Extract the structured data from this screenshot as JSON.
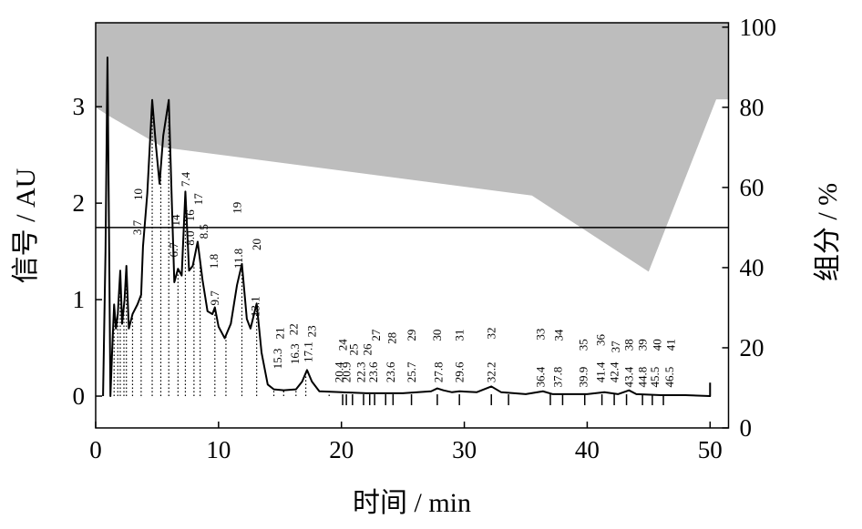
{
  "chart_data": {
    "type": "line",
    "x_label": "时间 / min",
    "y_label": "信号 / AU",
    "y2_label": "组分 / %",
    "xlim": [
      0,
      51.5
    ],
    "xticks": [
      0,
      10,
      20,
      30,
      40,
      50
    ],
    "ylim": [
      -0.33,
      3.87
    ],
    "yticks": [
      0,
      1,
      2,
      3
    ],
    "y2lim": [
      0,
      101.1
    ],
    "y2ticks": [
      0,
      20,
      40,
      60,
      80,
      100
    ],
    "series": [
      {
        "color": "#000000",
        "x": [
          0.6,
          0.8,
          0.96,
          1.1,
          1.2,
          1.35,
          1.5,
          1.65,
          1.8,
          2.0,
          2.15,
          2.35,
          2.5,
          2.7,
          3.0,
          3.4,
          3.7,
          3.85,
          4.2,
          4.6,
          4.9,
          5.2,
          5.5,
          5.95,
          6.2,
          6.4,
          6.7,
          7.0,
          7.3,
          7.6,
          7.9,
          8.3,
          8.7,
          9.1,
          9.5,
          9.7,
          10.0,
          10.5,
          11.0,
          11.5,
          11.9,
          12.3,
          12.6,
          13.1,
          13.5,
          14.0,
          14.5,
          15.3,
          16.3,
          16.8,
          17.2,
          17.6,
          18.2,
          20,
          22,
          25,
          27.3,
          27.8,
          28.3,
          29.0,
          29.6,
          31.0,
          32.2,
          33.0,
          35,
          36.4,
          37.2,
          40,
          41.4,
          42.5,
          43.4,
          44.0,
          46,
          48,
          50,
          50
        ],
        "values": [
          0,
          1.5,
          3.51,
          1.5,
          0,
          0.5,
          0.95,
          0.7,
          0.85,
          1.3,
          0.75,
          1.0,
          1.35,
          0.7,
          0.85,
          0.95,
          1.05,
          1.55,
          2.1,
          3.07,
          2.6,
          2.2,
          2.7,
          3.07,
          2.0,
          1.18,
          1.32,
          1.25,
          2.12,
          1.3,
          1.35,
          1.6,
          1.2,
          0.88,
          0.85,
          0.92,
          0.72,
          0.6,
          0.75,
          1.15,
          1.37,
          0.8,
          0.7,
          0.96,
          0.45,
          0.12,
          0.07,
          0.06,
          0.07,
          0.15,
          0.27,
          0.15,
          0.05,
          0.04,
          0.03,
          0.03,
          0.05,
          0.08,
          0.06,
          0.04,
          0.05,
          0.04,
          0.1,
          0.04,
          0.02,
          0.05,
          0.02,
          0.02,
          0.04,
          0.02,
          0.06,
          0.02,
          0.01,
          0.01,
          0,
          0.14
        ]
      },
      {
        "color": "#bdbdbd",
        "axis": "y2",
        "x": [
          0,
          1,
          5.5,
          35.5,
          45,
          50.5,
          51.5
        ],
        "values": [
          80,
          78,
          70,
          58,
          39,
          82,
          82
        ]
      }
    ],
    "hline": {
      "value": 50,
      "axis": "y2"
    },
    "droplines": [
      1.5,
      1.8,
      2.0,
      2.3,
      2.5,
      3.0,
      3.7,
      4.6,
      5.3,
      5.95,
      6.7,
      7.3,
      8.0,
      8.5,
      9.7,
      10.6,
      11.9,
      13.1,
      14.5,
      15.3,
      16.3,
      17.1,
      19.0
    ],
    "peak_ticks": [
      20.1,
      20.4,
      20.9,
      21.8,
      22.3,
      22.7,
      23.6,
      24.2,
      25.7,
      27.8,
      29.6,
      32.2,
      33.6,
      37.0,
      38.0,
      39.8,
      41.2,
      42.2,
      43.2,
      44.5,
      45.3,
      46.2
    ],
    "peak_labels": [
      {
        "text": "10",
        "x": 3.56,
        "y": 2.03
      },
      {
        "text": "3.7",
        "x": 3.5,
        "y": 1.67
      },
      {
        "text": "6.7",
        "x": 6.45,
        "y": 1.44
      },
      {
        "text": "14",
        "x": 6.6,
        "y": 1.76
      },
      {
        "text": "7.4",
        "x": 7.4,
        "y": 2.17
      },
      {
        "text": "8.0",
        "x": 7.8,
        "y": 1.56
      },
      {
        "text": "16",
        "x": 7.8,
        "y": 1.81
      },
      {
        "text": "17",
        "x": 8.45,
        "y": 1.98
      },
      {
        "text": "8.5",
        "x": 8.9,
        "y": 1.63
      },
      {
        "text": "1.8",
        "x": 9.7,
        "y": 1.32
      },
      {
        "text": "9.7",
        "x": 9.8,
        "y": 0.94
      },
      {
        "text": "19",
        "x": 11.6,
        "y": 1.89
      },
      {
        "text": "11.8",
        "x": 11.7,
        "y": 1.32
      },
      {
        "text": "20",
        "x": 13.2,
        "y": 1.51
      },
      {
        "text": "13.1",
        "x": 13.1,
        "y": 0.82
      },
      {
        "text": "15.3",
        "x": 14.9,
        "y": 0.28
      },
      {
        "text": "21",
        "x": 15.1,
        "y": 0.59
      },
      {
        "text": "16.3",
        "x": 16.3,
        "y": 0.33
      },
      {
        "text": "22",
        "x": 16.2,
        "y": 0.63
      },
      {
        "text": "17.1",
        "x": 17.4,
        "y": 0.35
      },
      {
        "text": "23",
        "x": 17.7,
        "y": 0.61
      },
      {
        "text": "20.4",
        "x": 19.9,
        "y": 0.14
      },
      {
        "text": "24",
        "x": 20.2,
        "y": 0.47
      },
      {
        "text": "20.9",
        "x": 20.5,
        "y": 0.14
      },
      {
        "text": "25",
        "x": 21.1,
        "y": 0.42
      },
      {
        "text": "22.3",
        "x": 21.7,
        "y": 0.14
      },
      {
        "text": "26",
        "x": 22.2,
        "y": 0.42
      },
      {
        "text": "23.6",
        "x": 22.7,
        "y": 0.14
      },
      {
        "text": "27",
        "x": 22.9,
        "y": 0.57
      },
      {
        "text": "23.6",
        "x": 24.1,
        "y": 0.14
      },
      {
        "text": "28",
        "x": 24.2,
        "y": 0.54
      },
      {
        "text": "25.7",
        "x": 25.8,
        "y": 0.14
      },
      {
        "text": "29",
        "x": 25.8,
        "y": 0.57
      },
      {
        "text": "27.8",
        "x": 28.0,
        "y": 0.14
      },
      {
        "text": "30",
        "x": 27.9,
        "y": 0.57
      },
      {
        "text": "29.6",
        "x": 29.7,
        "y": 0.14
      },
      {
        "text": "31",
        "x": 29.7,
        "y": 0.57
      },
      {
        "text": "32.2",
        "x": 32.3,
        "y": 0.14
      },
      {
        "text": "32",
        "x": 32.3,
        "y": 0.59
      },
      {
        "text": "36.4",
        "x": 36.3,
        "y": 0.09
      },
      {
        "text": "33",
        "x": 36.3,
        "y": 0.58
      },
      {
        "text": "37.8",
        "x": 37.7,
        "y": 0.09
      },
      {
        "text": "34",
        "x": 37.8,
        "y": 0.57
      },
      {
        "text": "39.9",
        "x": 39.8,
        "y": 0.09
      },
      {
        "text": "35",
        "x": 39.8,
        "y": 0.47
      },
      {
        "text": "41.4",
        "x": 41.2,
        "y": 0.14
      },
      {
        "text": "36",
        "x": 41.2,
        "y": 0.52
      },
      {
        "text": "42.4",
        "x": 42.3,
        "y": 0.14
      },
      {
        "text": "37",
        "x": 42.4,
        "y": 0.45
      },
      {
        "text": "43.4",
        "x": 43.5,
        "y": 0.09
      },
      {
        "text": "38",
        "x": 43.5,
        "y": 0.47
      },
      {
        "text": "44.8",
        "x": 44.6,
        "y": 0.09
      },
      {
        "text": "39",
        "x": 44.6,
        "y": 0.47
      },
      {
        "text": "45.5",
        "x": 45.6,
        "y": 0.09
      },
      {
        "text": "40",
        "x": 45.8,
        "y": 0.47
      },
      {
        "text": "46.5",
        "x": 46.8,
        "y": 0.09
      },
      {
        "text": "41",
        "x": 46.9,
        "y": 0.47
      }
    ]
  }
}
